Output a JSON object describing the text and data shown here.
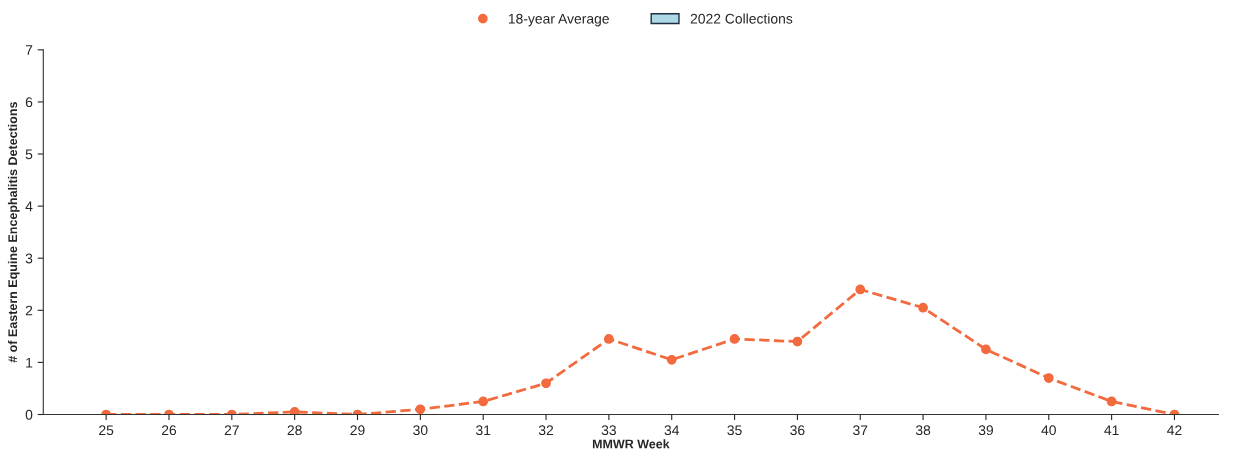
{
  "chart_data": {
    "type": "line",
    "xlabel": "MMWR Week",
    "ylabel": "# of Eastern Equine Encephalitis Detections",
    "categories": [
      "25",
      "26",
      "27",
      "28",
      "29",
      "30",
      "31",
      "32",
      "33",
      "34",
      "35",
      "36",
      "37",
      "38",
      "39",
      "40",
      "41",
      "42"
    ],
    "series": [
      {
        "name": "18-year Average",
        "color": "#f26a3d",
        "marker": "circle",
        "line_style": "dashed",
        "values": [
          0,
          0,
          0,
          0.05,
          0,
          0.1,
          0.25,
          0.6,
          1.45,
          1.05,
          1.45,
          1.4,
          2.4,
          2.05,
          1.25,
          0.7,
          0.25,
          0
        ]
      },
      {
        "name": "2022 Collections",
        "type": "bar",
        "color": "#add8e6",
        "values": [
          null,
          null,
          null,
          null,
          null,
          null,
          null,
          null,
          null,
          null,
          null,
          null,
          null,
          null,
          null,
          null,
          null,
          null
        ]
      }
    ],
    "ylim": [
      0,
      7
    ],
    "yticks": [
      0,
      1,
      2,
      3,
      4,
      5,
      6,
      7
    ],
    "grid": false,
    "legend": "top"
  }
}
